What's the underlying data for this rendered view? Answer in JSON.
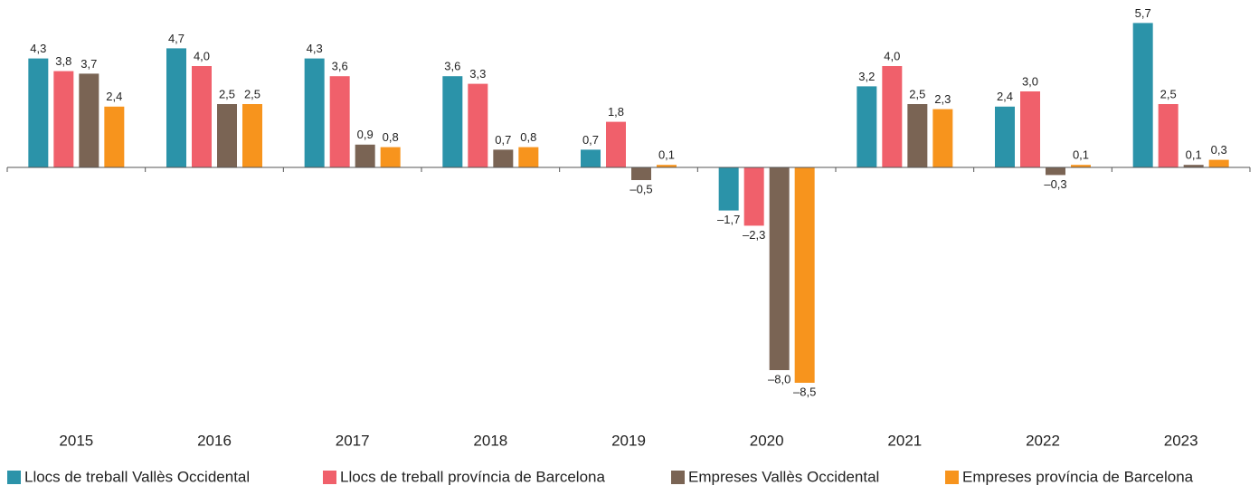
{
  "chart_data": {
    "type": "bar",
    "categories": [
      "2015",
      "2016",
      "2017",
      "2018",
      "2019",
      "2020",
      "2021",
      "2022",
      "2023"
    ],
    "ylim": [
      -9,
      6
    ],
    "series": [
      {
        "name": "Llocs de treball Vallès Occidental",
        "color": "#2b93a9",
        "values": [
          4.3,
          4.7,
          4.3,
          3.6,
          0.7,
          -1.7,
          3.2,
          2.4,
          5.7
        ],
        "value_labels": [
          "4,3",
          "4,7",
          "4,3",
          "3,6",
          "0,7",
          "–1,7",
          "3,2",
          "2,4",
          "5,7"
        ]
      },
      {
        "name": "Llocs de treball província de Barcelona",
        "color": "#f0606b",
        "values": [
          3.8,
          4.0,
          3.6,
          3.3,
          1.8,
          -2.3,
          4.0,
          3.0,
          2.5
        ],
        "value_labels": [
          "3,8",
          "4,0",
          "3,6",
          "3,3",
          "1,8",
          "–2,3",
          "4,0",
          "3,0",
          "2,5"
        ]
      },
      {
        "name": "Empreses Vallès Occidental",
        "color": "#7a6454",
        "values": [
          3.7,
          2.5,
          0.9,
          0.7,
          -0.5,
          -8.0,
          2.5,
          -0.3,
          0.1
        ],
        "value_labels": [
          "3,7",
          "2,5",
          "0,9",
          "0,7",
          "–0,5",
          "–8,0",
          "2,5",
          "–0,3",
          "0,1"
        ]
      },
      {
        "name": "Empreses província de Barcelona",
        "color": "#f7941d",
        "values": [
          2.4,
          2.5,
          0.8,
          0.8,
          0.1,
          -8.5,
          2.3,
          0.1,
          0.3
        ],
        "value_labels": [
          "2,4",
          "2,5",
          "0,8",
          "0,8",
          "0,1",
          "–8,5",
          "2,3",
          "0,1",
          "0,3"
        ]
      }
    ]
  }
}
